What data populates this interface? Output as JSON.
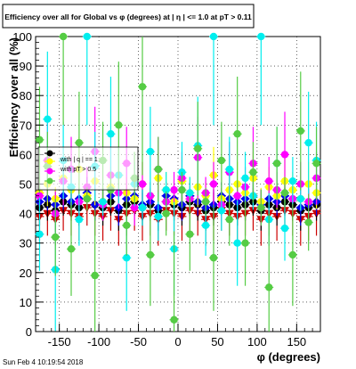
{
  "title": "Efficiency over all for Global vs φ (degrees) at | η | <= 1.0 at pT > 0.11",
  "footer": "Sun Feb  4 10:19:54 2018",
  "chart_data": {
    "type": "scatter",
    "title": "Efficiency over all for Global vs φ (degrees) at | η | <= 1.0 at pT > 0.11",
    "xlabel": "φ (degrees)",
    "ylabel": "Efficiency over all (%)",
    "xlim": [
      -180,
      180
    ],
    "ylim": [
      0,
      100
    ],
    "xticks": [
      -150,
      -100,
      -50,
      0,
      50,
      100,
      150
    ],
    "yticks": [
      0,
      10,
      20,
      30,
      40,
      50,
      60,
      70,
      80,
      90,
      100
    ],
    "grid": true,
    "legend_position": "middle-left",
    "legend": [
      "",
      "with | q | == 1",
      "with pT > 0.5",
      ""
    ],
    "series": [
      {
        "color": "#cc0000",
        "marker": "triangle-down",
        "x": [
          -175,
          -165,
          -155,
          -145,
          -135,
          -125,
          -115,
          -105,
          -95,
          -85,
          -75,
          -65,
          -55,
          -45,
          -35,
          -25,
          -15,
          -5,
          5,
          15,
          25,
          35,
          45,
          55,
          65,
          75,
          85,
          95,
          105,
          115,
          125,
          135,
          145,
          155,
          165,
          175
        ],
        "y": [
          39,
          40,
          38,
          41,
          40,
          39,
          42,
          40,
          39,
          41,
          38,
          40,
          41,
          39,
          40,
          38,
          41,
          40,
          39,
          41,
          40,
          38,
          39,
          41,
          40,
          39,
          40,
          41,
          38,
          40,
          39,
          41,
          40,
          38,
          39,
          40
        ]
      },
      {
        "color": "#000000",
        "marker": "circle",
        "x": [
          -175,
          -165,
          -155,
          -145,
          -135,
          -125,
          -115,
          -105,
          -95,
          -85,
          -75,
          -65,
          -55,
          -45,
          -35,
          -25,
          -15,
          -5,
          5,
          15,
          25,
          35,
          45,
          55,
          65,
          75,
          85,
          95,
          105,
          115,
          125,
          135,
          145,
          155,
          165,
          175
        ],
        "y": [
          42,
          43,
          41,
          44,
          43,
          42,
          45,
          43,
          42,
          44,
          41,
          43,
          44,
          42,
          43,
          41,
          44,
          43,
          42,
          44,
          43,
          41,
          42,
          44,
          43,
          42,
          43,
          44,
          41,
          43,
          42,
          44,
          43,
          41,
          42,
          43
        ]
      },
      {
        "color": "#0000ee",
        "marker": "diamond",
        "x": [
          -175,
          -165,
          -155,
          -145,
          -135,
          -125,
          -115,
          -105,
          -95,
          -85,
          -75,
          -65,
          -55,
          -45,
          -35,
          -25,
          -15,
          -5,
          5,
          15,
          25,
          35,
          45,
          55,
          65,
          75,
          85,
          95,
          105,
          115,
          125,
          135,
          145,
          155,
          165,
          175
        ],
        "y": [
          44,
          45,
          43,
          46,
          44,
          45,
          47,
          43,
          44,
          46,
          42,
          45,
          46,
          43,
          44,
          42,
          46,
          45,
          43,
          46,
          44,
          42,
          43,
          46,
          45,
          44,
          45,
          46,
          43,
          45,
          44,
          46,
          45,
          42,
          43,
          44
        ]
      },
      {
        "color": "#ffff00",
        "marker": "circle",
        "x": [
          -175,
          -165,
          -155,
          -145,
          -135,
          -125,
          -115,
          -105,
          -95,
          -85,
          -75,
          -65,
          -55,
          -45,
          -35,
          -25,
          -15,
          -5,
          5,
          15,
          25,
          35,
          45,
          55,
          65,
          75,
          85,
          95,
          105,
          115,
          125,
          135,
          145,
          155,
          165,
          175
        ],
        "y": [
          47,
          50,
          45,
          52,
          48,
          55,
          46,
          51,
          44,
          49,
          53,
          47,
          45,
          50,
          46,
          52,
          48,
          44,
          51,
          47,
          49,
          46,
          53,
          45,
          48,
          50,
          47,
          52,
          44,
          49,
          46,
          51,
          48,
          45,
          50,
          47
        ]
      },
      {
        "color": "#ff00ff",
        "marker": "circle",
        "x": [
          -175,
          -165,
          -155,
          -145,
          -135,
          -125,
          -115,
          -105,
          -95,
          -85,
          -75,
          -65,
          -55,
          -45,
          -35,
          -25,
          -15,
          -5,
          5,
          15,
          25,
          35,
          45,
          55,
          65,
          75,
          85,
          95,
          105,
          115,
          125,
          135,
          145,
          155,
          165,
          175
        ],
        "y": [
          46,
          58,
          40,
          51,
          55,
          44,
          49,
          61,
          43,
          53,
          47,
          57,
          42,
          50,
          46,
          55,
          44,
          48,
          52,
          45,
          59,
          47,
          50,
          43,
          54,
          46,
          49,
          57,
          42,
          51,
          48,
          60,
          45,
          50,
          44,
          52
        ]
      },
      {
        "color": "#00eeee",
        "marker": "circle",
        "x": [
          -175,
          -165,
          -155,
          -145,
          -135,
          -125,
          -115,
          -105,
          -95,
          -85,
          -75,
          -65,
          -55,
          -45,
          -35,
          -25,
          -15,
          -5,
          5,
          15,
          25,
          35,
          45,
          55,
          65,
          75,
          85,
          95,
          105,
          115,
          125,
          135,
          145,
          155,
          165,
          175
        ],
        "y": [
          33,
          72,
          21,
          58,
          49,
          38,
          100,
          56,
          44,
          67,
          53,
          25,
          50,
          42,
          61,
          39,
          48,
          28,
          54,
          47,
          63,
          36,
          100,
          41,
          55,
          30,
          52,
          46,
          100,
          38,
          57,
          35,
          51,
          45,
          64,
          58
        ]
      },
      {
        "color": "#55cc44",
        "marker": "circle",
        "x": [
          -175,
          -165,
          -155,
          -145,
          -135,
          -125,
          -115,
          -105,
          -95,
          -85,
          -75,
          -65,
          -55,
          -45,
          -35,
          -25,
          -15,
          -5,
          5,
          15,
          25,
          35,
          45,
          55,
          65,
          75,
          85,
          95,
          105,
          115,
          125,
          135,
          145,
          155,
          165,
          175
        ],
        "y": [
          65,
          56,
          32,
          100,
          28,
          64,
          45,
          19,
          58,
          48,
          70,
          36,
          52,
          83,
          26,
          55,
          40,
          4,
          48,
          33,
          62,
          44,
          25,
          58,
          38,
          67,
          30,
          54,
          42,
          15,
          57,
          47,
          26,
          68,
          37,
          57
        ]
      }
    ]
  }
}
